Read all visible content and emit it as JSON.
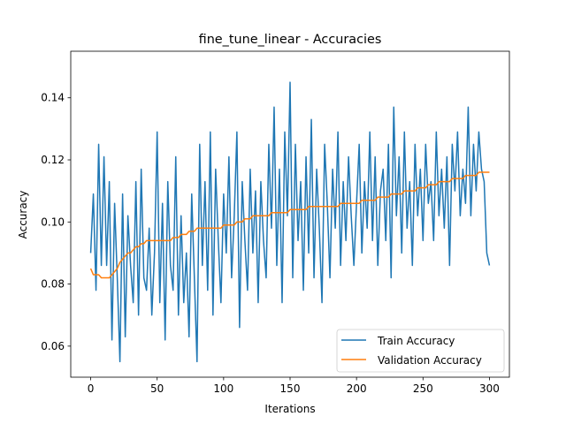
{
  "chart_data": {
    "type": "line",
    "title": "fine_tune_linear - Accuracies",
    "xlabel": "Iterations",
    "ylabel": "Accuracy",
    "xlim": [
      -15,
      315
    ],
    "ylim": [
      0.05,
      0.155
    ],
    "xticks": [
      0,
      50,
      100,
      150,
      200,
      250,
      300
    ],
    "yticks": [
      0.06,
      0.08,
      0.1,
      0.12,
      0.14
    ],
    "ytick_labels": [
      "0.06",
      "0.08",
      "0.10",
      "0.12",
      "0.14"
    ],
    "grid": false,
    "legend_position": "lower-right",
    "series": [
      {
        "name": "Train Accuracy",
        "color": "#1f77b4",
        "x": [
          0,
          2,
          4,
          6,
          8,
          10,
          12,
          14,
          16,
          18,
          20,
          22,
          24,
          26,
          28,
          30,
          32,
          34,
          36,
          38,
          40,
          42,
          44,
          46,
          48,
          50,
          52,
          54,
          56,
          58,
          60,
          62,
          64,
          66,
          68,
          70,
          72,
          74,
          76,
          78,
          80,
          82,
          84,
          86,
          88,
          90,
          92,
          94,
          96,
          98,
          100,
          102,
          104,
          106,
          108,
          110,
          112,
          114,
          116,
          118,
          120,
          122,
          124,
          126,
          128,
          130,
          132,
          134,
          136,
          138,
          140,
          142,
          144,
          146,
          148,
          150,
          152,
          154,
          156,
          158,
          160,
          162,
          164,
          166,
          168,
          170,
          172,
          174,
          176,
          178,
          180,
          182,
          184,
          186,
          188,
          190,
          192,
          194,
          196,
          198,
          200,
          202,
          204,
          206,
          208,
          210,
          212,
          214,
          216,
          218,
          220,
          222,
          224,
          226,
          228,
          230,
          232,
          234,
          236,
          238,
          240,
          242,
          244,
          246,
          248,
          250,
          252,
          254,
          256,
          258,
          260,
          262,
          264,
          266,
          268,
          270,
          272,
          274,
          276,
          278,
          280,
          282,
          284,
          286,
          288,
          290,
          292,
          294,
          296,
          298,
          300
        ],
        "values": [
          0.09,
          0.109,
          0.078,
          0.125,
          0.086,
          0.121,
          0.086,
          0.113,
          0.062,
          0.106,
          0.082,
          0.055,
          0.109,
          0.063,
          0.102,
          0.086,
          0.074,
          0.113,
          0.07,
          0.117,
          0.082,
          0.078,
          0.098,
          0.07,
          0.09,
          0.129,
          0.074,
          0.106,
          0.062,
          0.113,
          0.086,
          0.078,
          0.121,
          0.07,
          0.102,
          0.074,
          0.09,
          0.063,
          0.109,
          0.082,
          0.055,
          0.125,
          0.086,
          0.113,
          0.078,
          0.129,
          0.07,
          0.117,
          0.094,
          0.074,
          0.109,
          0.09,
          0.121,
          0.082,
          0.102,
          0.129,
          0.066,
          0.113,
          0.094,
          0.078,
          0.117,
          0.09,
          0.11,
          0.074,
          0.113,
          0.094,
          0.082,
          0.125,
          0.098,
          0.137,
          0.086,
          0.117,
          0.074,
          0.129,
          0.102,
          0.145,
          0.082,
          0.125,
          0.094,
          0.113,
          0.078,
          0.121,
          0.09,
          0.133,
          0.082,
          0.117,
          0.098,
          0.074,
          0.125,
          0.106,
          0.082,
          0.117,
          0.098,
          0.129,
          0.086,
          0.113,
          0.094,
          0.121,
          0.102,
          0.086,
          0.106,
          0.125,
          0.09,
          0.113,
          0.098,
          0.129,
          0.094,
          0.121,
          0.086,
          0.11,
          0.117,
          0.094,
          0.125,
          0.082,
          0.137,
          0.102,
          0.121,
          0.09,
          0.129,
          0.098,
          0.113,
          0.086,
          0.125,
          0.102,
          0.117,
          0.094,
          0.125,
          0.106,
          0.113,
          0.094,
          0.129,
          0.102,
          0.117,
          0.098,
          0.121,
          0.086,
          0.125,
          0.11,
          0.129,
          0.102,
          0.117,
          0.106,
          0.137,
          0.102,
          0.125,
          0.11,
          0.129,
          0.117,
          0.113,
          0.09,
          0.086
        ]
      },
      {
        "name": "Validation Accuracy",
        "color": "#ff7f0e",
        "x": [
          0,
          2,
          4,
          6,
          8,
          10,
          12,
          14,
          16,
          18,
          20,
          22,
          24,
          26,
          28,
          30,
          32,
          34,
          36,
          38,
          40,
          42,
          44,
          46,
          48,
          50,
          52,
          54,
          56,
          58,
          60,
          62,
          64,
          66,
          68,
          70,
          72,
          74,
          76,
          78,
          80,
          82,
          84,
          86,
          88,
          90,
          92,
          94,
          96,
          98,
          100,
          102,
          104,
          106,
          108,
          110,
          112,
          114,
          116,
          118,
          120,
          122,
          124,
          126,
          128,
          130,
          132,
          134,
          136,
          138,
          140,
          142,
          144,
          146,
          148,
          150,
          152,
          154,
          156,
          158,
          160,
          162,
          164,
          166,
          168,
          170,
          172,
          174,
          176,
          178,
          180,
          182,
          184,
          186,
          188,
          190,
          192,
          194,
          196,
          198,
          200,
          202,
          204,
          206,
          208,
          210,
          212,
          214,
          216,
          218,
          220,
          222,
          224,
          226,
          228,
          230,
          232,
          234,
          236,
          238,
          240,
          242,
          244,
          246,
          248,
          250,
          252,
          254,
          256,
          258,
          260,
          262,
          264,
          266,
          268,
          270,
          272,
          274,
          276,
          278,
          280,
          282,
          284,
          286,
          288,
          290,
          292,
          294,
          296,
          298,
          300
        ],
        "values": [
          0.085,
          0.083,
          0.083,
          0.083,
          0.082,
          0.082,
          0.082,
          0.082,
          0.083,
          0.084,
          0.085,
          0.087,
          0.088,
          0.089,
          0.09,
          0.09,
          0.091,
          0.092,
          0.092,
          0.093,
          0.093,
          0.094,
          0.094,
          0.094,
          0.094,
          0.094,
          0.094,
          0.094,
          0.094,
          0.094,
          0.094,
          0.095,
          0.095,
          0.095,
          0.096,
          0.096,
          0.096,
          0.097,
          0.097,
          0.097,
          0.098,
          0.098,
          0.098,
          0.098,
          0.098,
          0.098,
          0.098,
          0.098,
          0.098,
          0.098,
          0.099,
          0.099,
          0.099,
          0.099,
          0.099,
          0.1,
          0.1,
          0.1,
          0.101,
          0.101,
          0.101,
          0.102,
          0.102,
          0.102,
          0.102,
          0.102,
          0.102,
          0.102,
          0.103,
          0.103,
          0.103,
          0.103,
          0.103,
          0.103,
          0.103,
          0.104,
          0.104,
          0.104,
          0.104,
          0.104,
          0.104,
          0.104,
          0.105,
          0.105,
          0.105,
          0.105,
          0.105,
          0.105,
          0.105,
          0.105,
          0.105,
          0.105,
          0.105,
          0.105,
          0.106,
          0.106,
          0.106,
          0.106,
          0.106,
          0.106,
          0.106,
          0.106,
          0.107,
          0.107,
          0.107,
          0.107,
          0.107,
          0.107,
          0.108,
          0.108,
          0.108,
          0.108,
          0.108,
          0.109,
          0.109,
          0.109,
          0.109,
          0.109,
          0.11,
          0.11,
          0.11,
          0.11,
          0.11,
          0.111,
          0.111,
          0.111,
          0.111,
          0.112,
          0.112,
          0.112,
          0.112,
          0.113,
          0.113,
          0.113,
          0.113,
          0.113,
          0.114,
          0.114,
          0.114,
          0.114,
          0.114,
          0.115,
          0.115,
          0.115,
          0.115,
          0.115,
          0.116,
          0.116,
          0.116,
          0.116,
          0.116
        ]
      }
    ]
  }
}
